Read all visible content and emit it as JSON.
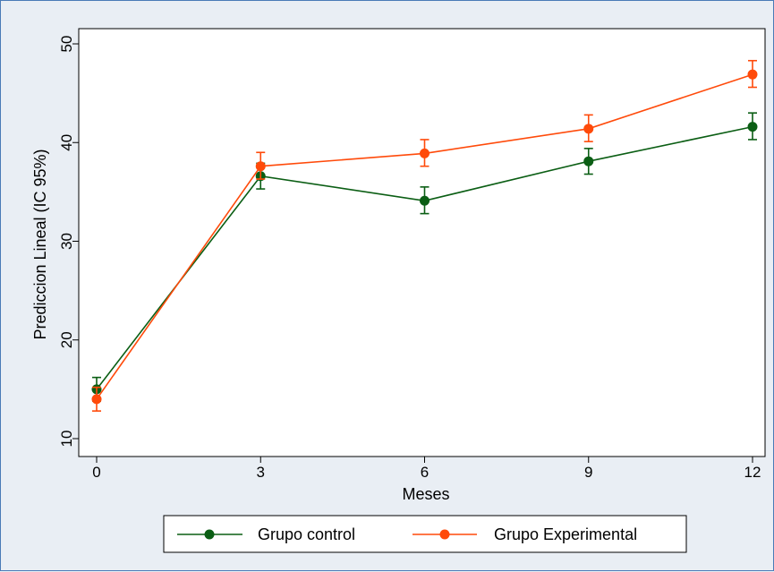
{
  "chart_data": {
    "type": "line",
    "title": "",
    "xlabel": "Meses",
    "ylabel": "Prediccion Lineal (IC 95%)",
    "x": [
      0,
      3,
      6,
      9,
      12
    ],
    "xticks": [
      "0",
      "3",
      "6",
      "9",
      "12"
    ],
    "yticks": [
      "10",
      "20",
      "30",
      "40",
      "50"
    ],
    "xlim": [
      0,
      12
    ],
    "ylim": [
      10,
      50
    ],
    "grid": false,
    "legend_position": "bottom",
    "series": [
      {
        "name": "Grupo control",
        "color": "#0b5e14",
        "values": [
          15.0,
          36.6,
          34.1,
          38.1,
          41.6
        ],
        "ci_low": [
          13.8,
          35.3,
          32.8,
          36.8,
          40.3
        ],
        "ci_high": [
          16.2,
          37.9,
          35.5,
          39.4,
          43.0
        ]
      },
      {
        "name": "Grupo Experimental",
        "color": "#ff4a0a",
        "values": [
          14.0,
          37.6,
          38.9,
          41.4,
          46.9
        ],
        "ci_low": [
          12.8,
          36.3,
          37.6,
          40.1,
          45.6
        ],
        "ci_high": [
          15.2,
          39.0,
          40.3,
          42.8,
          48.3
        ]
      }
    ]
  }
}
